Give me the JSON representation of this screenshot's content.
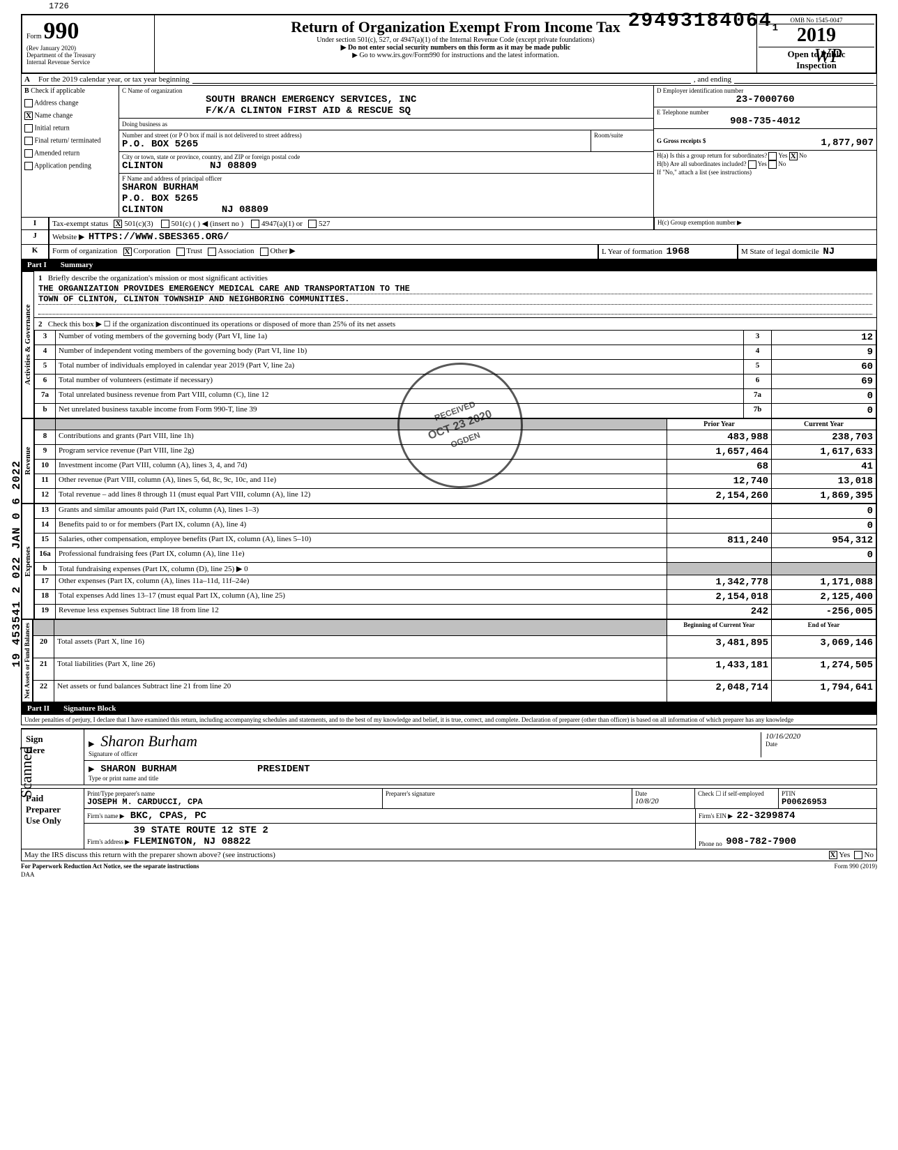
{
  "meta": {
    "top_left_num": "1726",
    "dln": "29493184064",
    "dln_suffix": "1",
    "omb": "OMB No 1545-0047",
    "form_no": "990",
    "rev": "(Rev January 2020)",
    "dept": "Department of the Treasury",
    "irs": "Internal Revenue Service",
    "title": "Return of Organization Exempt From Income Tax",
    "subtitle1": "Under section 501(c), 527, or 4947(a)(1) of the Internal Revenue Code (except private foundations)",
    "subtitle2": "▶ Do not enter social security numbers on this form as it may be made public",
    "subtitle3": "▶ Go to www.irs.gov/Form990 for instructions and the latest information.",
    "year": "2019",
    "open": "Open to Public",
    "inspection": "Inspection",
    "initial_mark": "WP"
  },
  "boxA": {
    "line": "For the 2019 calendar year, or tax year beginning",
    "ending": ", and ending"
  },
  "boxB": {
    "label": "Check if applicable",
    "address_change": "Address change",
    "name_change": "Name change",
    "name_change_checked": true,
    "initial_return": "Initial return",
    "final_return": "Final return/\nterminated",
    "amended": "Amended return",
    "app_pending": "Application pending"
  },
  "boxC": {
    "label": "C  Name of organization",
    "name1": "SOUTH BRANCH EMERGENCY SERVICES, INC",
    "name2": "F/K/A CLINTON FIRST AID & RESCUE SQ",
    "dba_label": "Doing business as",
    "addr_label": "Number and street (or P O box if mail is not delivered to street address)",
    "addr": "P.O. BOX 5265",
    "room_label": "Room/suite",
    "city_label": "City or town, state or province, country, and ZIP or foreign postal code",
    "city": "CLINTON",
    "state_zip": "NJ 08809"
  },
  "boxD": {
    "label": "D Employer identification number",
    "ein": "23-7000760"
  },
  "boxE": {
    "label": "E Telephone number",
    "phone": "908-735-4012"
  },
  "boxF": {
    "label": "F Name and address of principal officer",
    "name": "SHARON BURHAM",
    "addr": "P.O. BOX 5265",
    "city": "CLINTON",
    "state_zip": "NJ 08809"
  },
  "boxG": {
    "label": "G Gross receipts $",
    "amount": "1,877,907"
  },
  "boxH": {
    "a_label": "H(a) Is this a group return for subordinates?",
    "a_yes": "Yes",
    "a_no": "No",
    "a_no_checked": true,
    "b_label": "H(b) Are all subordinates included?",
    "b_note": "If \"No,\" attach a list (see instructions)",
    "c_label": "H(c) Group exemption number ▶"
  },
  "boxI": {
    "label": "Tax-exempt status",
    "c3": "501(c)(3)",
    "c3_checked": true,
    "c": "501(c)  (      ) ◀ (insert no )",
    "a1": "4947(a)(1) or",
    "s527": "527"
  },
  "boxJ": {
    "label": "Website ▶",
    "url": "HTTPS://WWW.SBES365.ORG/"
  },
  "boxK": {
    "label": "Form of organization",
    "corp": "Corporation",
    "corp_checked": true,
    "trust": "Trust",
    "assoc": "Association",
    "other": "Other ▶"
  },
  "boxL": {
    "label": "L  Year of formation",
    "year": "1968"
  },
  "boxM": {
    "label": "M  State of legal domicile",
    "state": "NJ"
  },
  "partI": {
    "header_part": "Part I",
    "header_title": "Summary",
    "side_gov": "Activities & Governance",
    "side_rev": "Revenue",
    "side_exp": "Expenses",
    "side_bal": "Net Assets or\nFund Balances",
    "line1_label": "Briefly describe the organization's mission or most significant activities",
    "line1_text1": "THE ORGANIZATION PROVIDES EMERGENCY MEDICAL CARE AND TRANSPORTATION TO THE",
    "line1_text2": "TOWN OF CLINTON, CLINTON TOWNSHIP AND NEIGHBORING COMMUNITIES.",
    "line2": "Check this box ▶ ☐  if the organization discontinued its operations or disposed of more than 25% of its net assets",
    "col_prior": "Prior Year",
    "col_current": "Current Year",
    "col_begin": "Beginning of Current Year",
    "col_end": "End of Year",
    "rows_gov": [
      {
        "n": "3",
        "d": "Number of voting members of the governing body (Part VI, line 1a)",
        "b": "3",
        "v": "12"
      },
      {
        "n": "4",
        "d": "Number of independent voting members of the governing body (Part VI, line 1b)",
        "b": "4",
        "v": "9"
      },
      {
        "n": "5",
        "d": "Total number of individuals employed in calendar year 2019 (Part V, line 2a)",
        "b": "5",
        "v": "60"
      },
      {
        "n": "6",
        "d": "Total number of volunteers (estimate if necessary)",
        "b": "6",
        "v": "69"
      },
      {
        "n": "7a",
        "d": "Total unrelated business revenue from Part VIII, column (C), line 12",
        "b": "7a",
        "v": "0"
      },
      {
        "n": "b",
        "d": "Net unrelated business taxable income from Form 990-T, line 39",
        "b": "7b",
        "v": "0"
      }
    ],
    "rows_rev": [
      {
        "n": "8",
        "d": "Contributions and grants (Part VIII, line 1h)",
        "p": "483,988",
        "c": "238,703"
      },
      {
        "n": "9",
        "d": "Program service revenue (Part VIII, line 2g)",
        "p": "1,657,464",
        "c": "1,617,633"
      },
      {
        "n": "10",
        "d": "Investment income (Part VIII, column (A), lines 3, 4, and 7d)",
        "p": "68",
        "c": "41"
      },
      {
        "n": "11",
        "d": "Other revenue (Part VIII, column (A), lines 5, 6d, 8c, 9c, 10c, and 11e)",
        "p": "12,740",
        "c": "13,018"
      },
      {
        "n": "12",
        "d": "Total revenue – add lines 8 through 11 (must equal Part VIII, column (A), line 12)",
        "p": "2,154,260",
        "c": "1,869,395"
      }
    ],
    "rows_exp": [
      {
        "n": "13",
        "d": "Grants and similar amounts paid (Part IX, column (A), lines 1–3)",
        "p": "",
        "c": "0"
      },
      {
        "n": "14",
        "d": "Benefits paid to or for members (Part IX, column (A), line 4)",
        "p": "",
        "c": "0"
      },
      {
        "n": "15",
        "d": "Salaries, other compensation, employee benefits (Part IX, column (A), lines 5–10)",
        "p": "811,240",
        "c": "954,312"
      },
      {
        "n": "16a",
        "d": "Professional fundraising fees (Part IX, column (A), line 11e)",
        "p": "",
        "c": "0"
      },
      {
        "n": "b",
        "d": "Total fundraising expenses (Part IX, column (D), line 25) ▶                                              0",
        "p": "GREY",
        "c": "GREY"
      },
      {
        "n": "17",
        "d": "Other expenses (Part IX, column (A), lines 11a–11d, 11f–24e)",
        "p": "1,342,778",
        "c": "1,171,088"
      },
      {
        "n": "18",
        "d": "Total expenses Add lines 13–17 (must equal Part IX, column (A), line 25)",
        "p": "2,154,018",
        "c": "2,125,400"
      },
      {
        "n": "19",
        "d": "Revenue less expenses Subtract line 18 from line 12",
        "p": "242",
        "c": "-256,005"
      }
    ],
    "rows_bal": [
      {
        "n": "20",
        "d": "Total assets (Part X, line 16)",
        "p": "3,481,895",
        "c": "3,069,146"
      },
      {
        "n": "21",
        "d": "Total liabilities (Part X, line 26)",
        "p": "1,433,181",
        "c": "1,274,505"
      },
      {
        "n": "22",
        "d": "Net assets or fund balances Subtract line 21 from line 20",
        "p": "2,048,714",
        "c": "1,794,641"
      }
    ]
  },
  "partII": {
    "header_part": "Part II",
    "header_title": "Signature Block",
    "jurat": "Under penalties of perjury, I declare that I have examined this return, including accompanying schedules and statements, and to the best of my knowledge and belief, it is true, correct, and complete. Declaration of preparer (other than officer) is based on all information of which preparer has any knowledge",
    "sign_here": "Sign\nHere",
    "sig_label": "Signature of officer",
    "sig_script": "Sharon Burham",
    "date_label": "Date",
    "sig_date": "10/16/2020",
    "officer_name": "SHARON BURHAM",
    "officer_title": "PRESIDENT",
    "type_label": "Type or print name and title",
    "paid": "Paid\nPreparer\nUse Only",
    "prep_name_label": "Print/Type preparer's name",
    "prep_name": "JOSEPH M. CARDUCCI, CPA",
    "prep_sig_label": "Preparer's signature",
    "prep_date_label": "Date",
    "prep_date": "10/8/20",
    "check_self": "Check ☐ if self-employed",
    "ptin_label": "PTIN",
    "ptin": "P00626953",
    "firm_name_label": "Firm's name  ▶",
    "firm_name": "BKC, CPAS, PC",
    "firm_ein_label": "Firm's EIN ▶",
    "firm_ein": "22-3299874",
    "firm_addr_label": "Firm's address  ▶",
    "firm_addr1": "39 STATE ROUTE 12 STE 2",
    "firm_addr2": "FLEMINGTON, NJ   08822",
    "phone_label": "Phone no",
    "firm_phone": "908-782-7900",
    "discuss": "May the IRS discuss this return with the preparer shown above? (see instructions)",
    "discuss_yes": "Yes",
    "discuss_yes_checked": true,
    "discuss_no": "No",
    "pra": "For Paperwork Reduction Act Notice, see the separate instructions",
    "daa": "DAA",
    "form_footer": "Form 990 (2019)"
  },
  "stamps": {
    "received": {
      "r1": "RECEIVED",
      "r2": "OCT 23 2020",
      "r3": "OGDEN"
    },
    "left_margin": "19 453541 2 022  JAN 0 6 2022",
    "scanned": "Scanned"
  }
}
